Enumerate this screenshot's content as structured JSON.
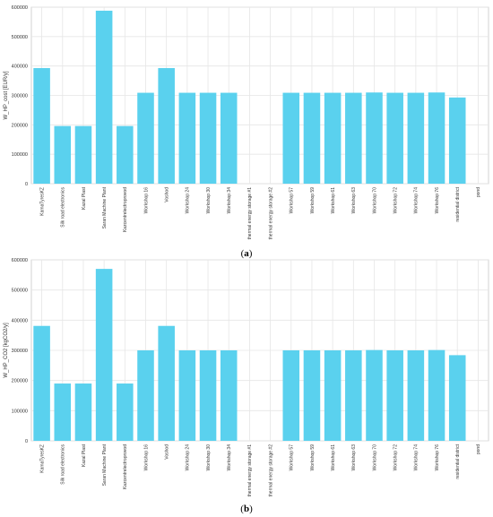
{
  "captions": {
    "a": "a",
    "b": "b"
  },
  "colors": {
    "bar": "#5ad1ee",
    "grid": "#e6e6e6",
    "axis": "#c8c8c8",
    "text": "#333333"
  },
  "chart_data": [
    {
      "type": "bar",
      "title": "",
      "xlabel": "",
      "ylabel": "W_HP_cost [EUR/y]",
      "ylim": [
        0,
        600000
      ],
      "yticks": [
        0,
        100000,
        200000,
        300000,
        400000,
        500000,
        600000
      ],
      "grid": true,
      "categories": [
        "KamaTyresKZ",
        "Silk road electronics",
        "Kazal Plast",
        "Saran Machine Plant",
        "Kazcentrelectroprovod",
        "Workshop 16",
        "Voshod",
        "Workshop 24",
        "Workshop 30",
        "Workshop 34",
        "thermal energy storage #1",
        "thermal energy storage #2",
        "Workshop 57",
        "Workshop 59",
        "Workshop 61",
        "Workshop 63",
        "Workshop 70",
        "Workshop 72",
        "Workshop 74",
        "Workshop 76",
        "residential district",
        "pond"
      ],
      "values": [
        393000,
        196000,
        196000,
        588000,
        196000,
        309000,
        393000,
        309000,
        309000,
        309000,
        0,
        0,
        309000,
        309000,
        309000,
        309000,
        310000,
        309000,
        309000,
        310000,
        293000,
        0
      ]
    },
    {
      "type": "bar",
      "title": "",
      "xlabel": "",
      "ylabel": "W_HP_CO2 [kgCO2/y]",
      "ylim": [
        0,
        600000
      ],
      "yticks": [
        0,
        100000,
        200000,
        300000,
        400000,
        500000,
        600000
      ],
      "grid": true,
      "categories": [
        "KamaTyresKZ",
        "Silk road electronics",
        "Kazal Plast",
        "Saran Machine Plant",
        "Kazcentrelectroprovod",
        "Workshop 16",
        "Voshod",
        "Workshop 24",
        "Workshop 30",
        "Workshop 34",
        "thermal energy storage #1",
        "thermal energy storage #2",
        "Workshop 57",
        "Workshop 59",
        "Workshop 61",
        "Workshop 63",
        "Workshop 70",
        "Workshop 72",
        "Workshop 74",
        "Workshop 76",
        "residential district",
        "pond"
      ],
      "values": [
        381000,
        190000,
        190000,
        570000,
        190000,
        300000,
        381000,
        300000,
        300000,
        300000,
        0,
        0,
        300000,
        300000,
        300000,
        300000,
        301000,
        300000,
        300000,
        301000,
        284000,
        0
      ]
    }
  ]
}
